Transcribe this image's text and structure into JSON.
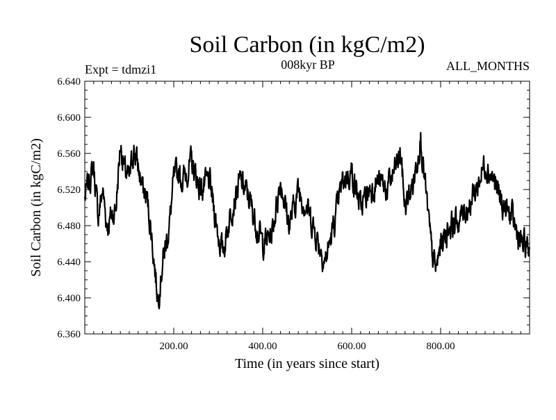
{
  "chart_data": {
    "type": "line",
    "title": "Soil Carbon (in kgC/m2)",
    "subtitle_left": "Expt = tdmzi1",
    "subtitle_center": "008kyr BP",
    "subtitle_right": "ALL_MONTHS",
    "xlabel": "Time (in years since start)",
    "ylabel": "Soil Carbon (in kgC/m2)",
    "xlim": [
      0,
      1000
    ],
    "ylim": [
      6.36,
      6.64
    ],
    "xticks": [
      200,
      400,
      600,
      800
    ],
    "xtick_labels": [
      "200.00",
      "400.00",
      "600.00",
      "800.00"
    ],
    "yticks": [
      6.36,
      6.4,
      6.44,
      6.48,
      6.52,
      6.56,
      6.6,
      6.64
    ],
    "ytick_labels": [
      "6.360",
      "6.400",
      "6.440",
      "6.480",
      "6.520",
      "6.560",
      "6.600",
      "6.640"
    ],
    "grid": false,
    "line_color": "#000000",
    "series": [
      {
        "name": "Soil Carbon",
        "keypoints": [
          [
            0,
            6.51
          ],
          [
            10,
            6.53
          ],
          [
            20,
            6.545
          ],
          [
            30,
            6.49
          ],
          [
            40,
            6.52
          ],
          [
            50,
            6.48
          ],
          [
            60,
            6.49
          ],
          [
            70,
            6.5
          ],
          [
            80,
            6.57
          ],
          [
            90,
            6.54
          ],
          [
            100,
            6.53
          ],
          [
            110,
            6.565
          ],
          [
            120,
            6.545
          ],
          [
            130,
            6.52
          ],
          [
            140,
            6.51
          ],
          [
            150,
            6.47
          ],
          [
            160,
            6.42
          ],
          [
            165,
            6.4
          ],
          [
            175,
            6.44
          ],
          [
            190,
            6.48
          ],
          [
            200,
            6.53
          ],
          [
            210,
            6.54
          ],
          [
            220,
            6.53
          ],
          [
            240,
            6.55
          ],
          [
            260,
            6.52
          ],
          [
            280,
            6.53
          ],
          [
            300,
            6.47
          ],
          [
            310,
            6.45
          ],
          [
            330,
            6.5
          ],
          [
            350,
            6.53
          ],
          [
            370,
            6.51
          ],
          [
            380,
            6.49
          ],
          [
            400,
            6.46
          ],
          [
            420,
            6.47
          ],
          [
            440,
            6.53
          ],
          [
            460,
            6.48
          ],
          [
            480,
            6.52
          ],
          [
            500,
            6.5
          ],
          [
            520,
            6.47
          ],
          [
            540,
            6.44
          ],
          [
            560,
            6.48
          ],
          [
            580,
            6.53
          ],
          [
            600,
            6.54
          ],
          [
            620,
            6.5
          ],
          [
            640,
            6.52
          ],
          [
            660,
            6.53
          ],
          [
            680,
            6.52
          ],
          [
            700,
            6.545
          ],
          [
            710,
            6.56
          ],
          [
            720,
            6.5
          ],
          [
            740,
            6.53
          ],
          [
            755,
            6.58
          ],
          [
            760,
            6.55
          ],
          [
            770,
            6.5
          ],
          [
            780,
            6.45
          ],
          [
            790,
            6.43
          ],
          [
            800,
            6.46
          ],
          [
            820,
            6.48
          ],
          [
            840,
            6.485
          ],
          [
            860,
            6.5
          ],
          [
            880,
            6.52
          ],
          [
            900,
            6.55
          ],
          [
            920,
            6.53
          ],
          [
            940,
            6.5
          ],
          [
            960,
            6.49
          ],
          [
            980,
            6.46
          ],
          [
            1000,
            6.455
          ]
        ]
      }
    ]
  }
}
